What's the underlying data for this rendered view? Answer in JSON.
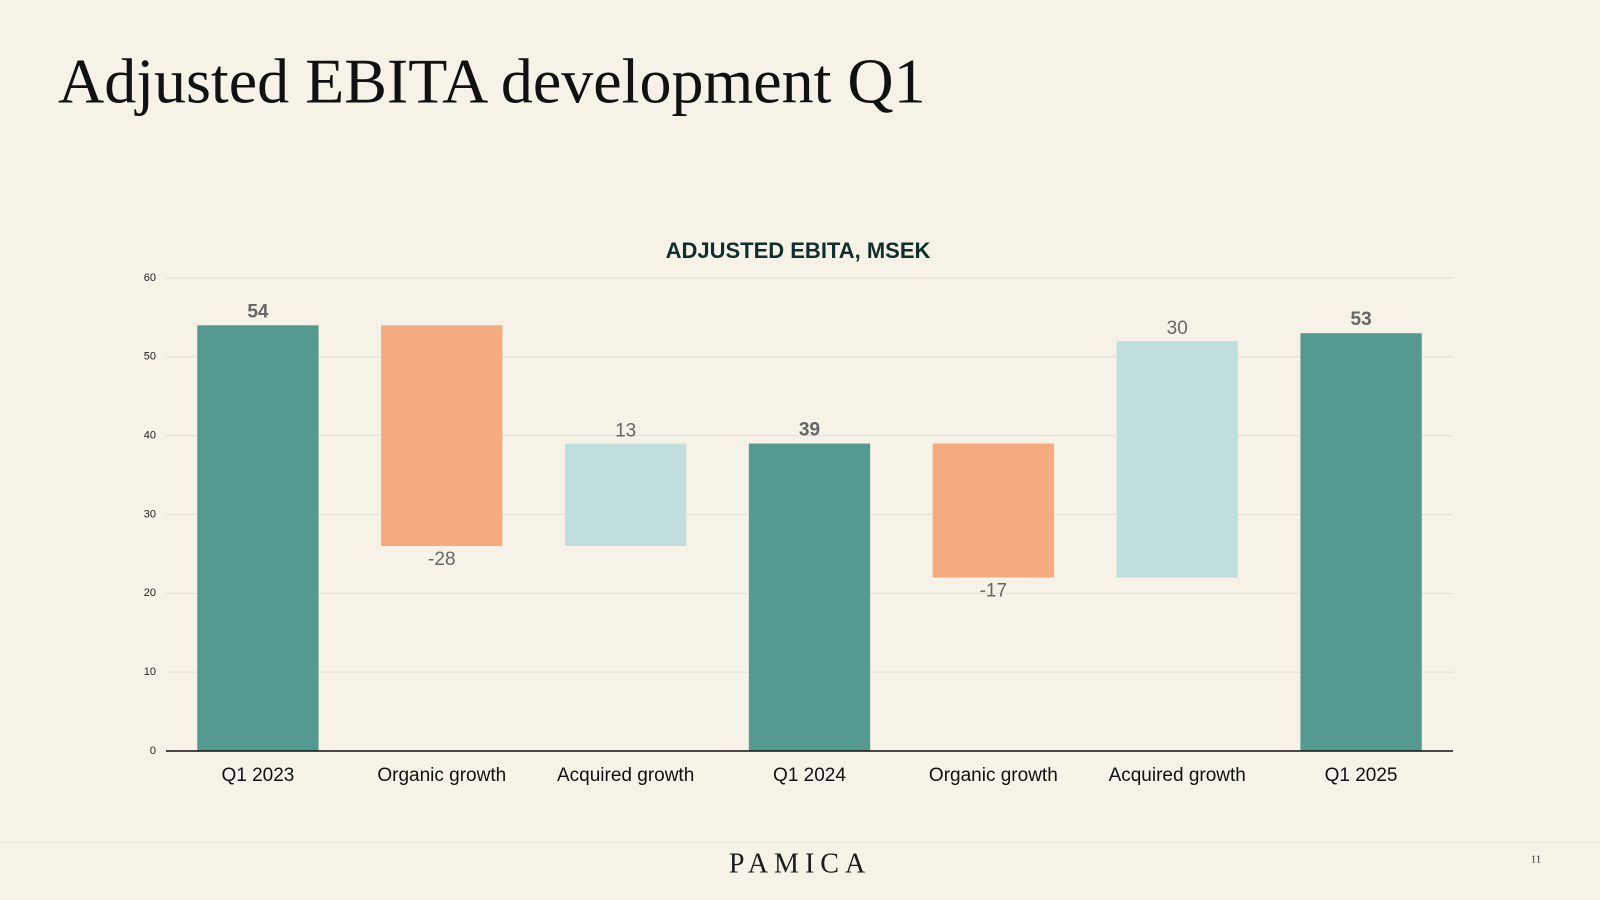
{
  "title": "Adjusted EBITA development Q1",
  "chart_data": {
    "type": "waterfall",
    "title": "ADJUSTED EBITA, MSEK",
    "categories": [
      "Q1 2023",
      "Organic growth",
      "Acquired growth",
      "Q1 2024",
      "Organic growth",
      "Acquired growth",
      "Q1 2025"
    ],
    "values": [
      54,
      -28,
      13,
      39,
      -17,
      30,
      53
    ],
    "measure": [
      "total",
      "relative",
      "relative",
      "total",
      "relative",
      "relative",
      "total"
    ],
    "colors": {
      "total": "#559a90",
      "decrease": "#f5ab80",
      "increase": "#bfdedd"
    },
    "ylim": [
      0,
      60
    ],
    "yticks": [
      0,
      10,
      20,
      30,
      40,
      50,
      60
    ],
    "grid": true
  },
  "footer": {
    "logo": "PAMICA",
    "page_number": "11"
  }
}
